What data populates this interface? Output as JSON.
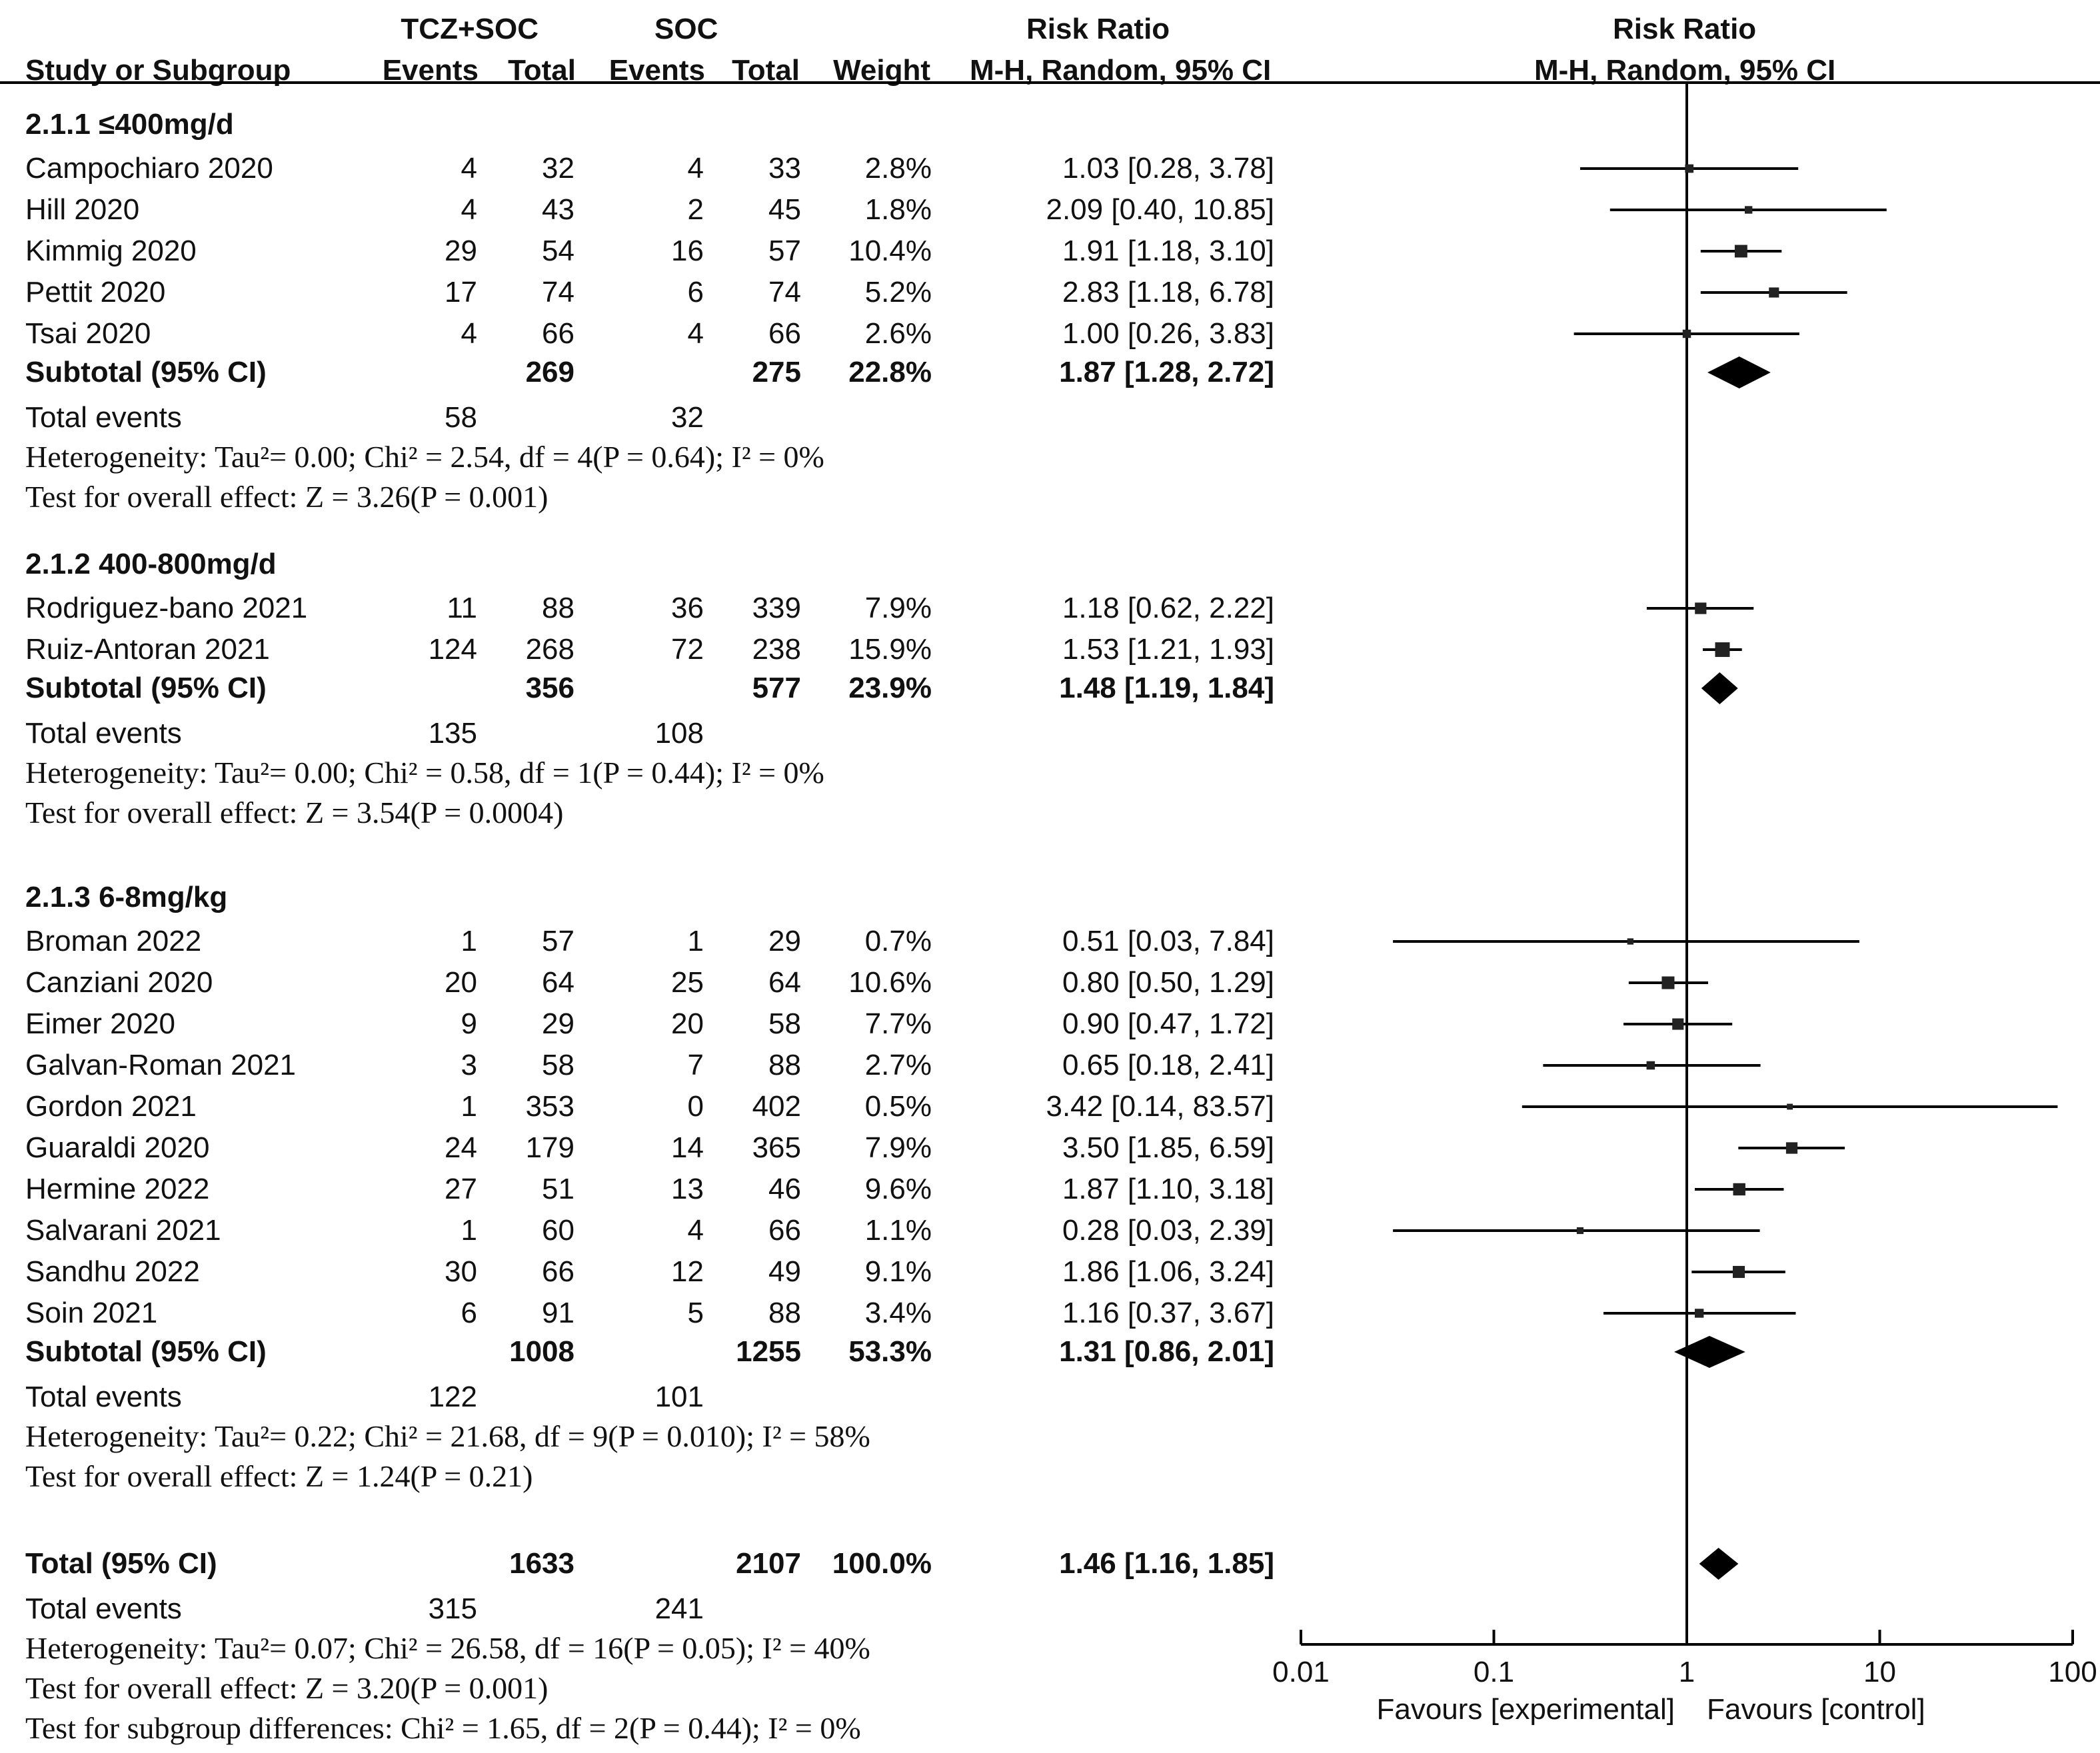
{
  "headers": {
    "arm1": "TCZ+SOC",
    "arm2": "SOC",
    "rr_left": "Risk Ratio",
    "rr_right": "Risk Ratio",
    "study": "Study or Subgroup",
    "events1": "Events",
    "total1": "Total",
    "events2": "Events",
    "total2": "Total",
    "weight": "Weight",
    "method_left": "M-H, Random, 95% CI",
    "method_right": "M-H, Random, 95% CI"
  },
  "subgroups": [
    {
      "title": "2.1.1 ≤400mg/d",
      "studies": [
        {
          "name": "Campochiaro 2020",
          "e1": "4",
          "t1": "32",
          "e2": "4",
          "t2": "33",
          "w": "2.8%",
          "ci": "1.03 [0.28, 3.78]"
        },
        {
          "name": "Hill 2020",
          "e1": "4",
          "t1": "43",
          "e2": "2",
          "t2": "45",
          "w": "1.8%",
          "ci": "2.09 [0.40, 10.85]"
        },
        {
          "name": "Kimmig 2020",
          "e1": "29",
          "t1": "54",
          "e2": "16",
          "t2": "57",
          "w": "10.4%",
          "ci": "1.91 [1.18, 3.10]"
        },
        {
          "name": "Pettit 2020",
          "e1": "17",
          "t1": "74",
          "e2": "6",
          "t2": "74",
          "w": "5.2%",
          "ci": "2.83 [1.18, 6.78]"
        },
        {
          "name": "Tsai 2020",
          "e1": "4",
          "t1": "66",
          "e2": "4",
          "t2": "66",
          "w": "2.6%",
          "ci": "1.00 [0.26, 3.83]"
        }
      ],
      "subtotal": {
        "label": "Subtotal (95% CI)",
        "t1": "269",
        "t2": "275",
        "w": "22.8%",
        "ci": "1.87 [1.28, 2.72]"
      },
      "total_events": {
        "label": "Total events",
        "e1": "58",
        "e2": "32"
      },
      "heterogeneity": "Heterogeneity: Tau²= 0.00; Chi² = 2.54, df = 4(P = 0.64); I² = 0%",
      "overall": "Test for overall effect: Z = 3.26(P = 0.001)"
    },
    {
      "title": "2.1.2 400-800mg/d",
      "studies": [
        {
          "name": "Rodriguez-bano 2021",
          "e1": "11",
          "t1": "88",
          "e2": "36",
          "t2": "339",
          "w": "7.9%",
          "ci": "1.18 [0.62, 2.22]"
        },
        {
          "name": "Ruiz-Antoran 2021",
          "e1": "124",
          "t1": "268",
          "e2": "72",
          "t2": "238",
          "w": "15.9%",
          "ci": "1.53 [1.21, 1.93]"
        }
      ],
      "subtotal": {
        "label": "Subtotal (95% CI)",
        "t1": "356",
        "t2": "577",
        "w": "23.9%",
        "ci": "1.48 [1.19, 1.84]"
      },
      "total_events": {
        "label": "Total events",
        "e1": "135",
        "e2": "108"
      },
      "heterogeneity": "Heterogeneity: Tau²= 0.00; Chi² = 0.58, df = 1(P = 0.44); I² = 0%",
      "overall": "Test for overall effect: Z = 3.54(P = 0.0004)"
    },
    {
      "title": "2.1.3 6-8mg/kg",
      "studies": [
        {
          "name": "Broman 2022",
          "e1": "1",
          "t1": "57",
          "e2": "1",
          "t2": "29",
          "w": "0.7%",
          "ci": "0.51 [0.03, 7.84]"
        },
        {
          "name": "Canziani 2020",
          "e1": "20",
          "t1": "64",
          "e2": "25",
          "t2": "64",
          "w": "10.6%",
          "ci": "0.80 [0.50, 1.29]"
        },
        {
          "name": "Eimer 2020",
          "e1": "9",
          "t1": "29",
          "e2": "20",
          "t2": "58",
          "w": "7.7%",
          "ci": "0.90 [0.47, 1.72]"
        },
        {
          "name": "Galvan-Roman 2021",
          "e1": "3",
          "t1": "58",
          "e2": "7",
          "t2": "88",
          "w": "2.7%",
          "ci": "0.65 [0.18, 2.41]"
        },
        {
          "name": "Gordon 2021",
          "e1": "1",
          "t1": "353",
          "e2": "0",
          "t2": "402",
          "w": "0.5%",
          "ci": "3.42 [0.14, 83.57]"
        },
        {
          "name": "Guaraldi  2020",
          "e1": "24",
          "t1": "179",
          "e2": "14",
          "t2": "365",
          "w": "7.9%",
          "ci": "3.50 [1.85, 6.59]"
        },
        {
          "name": "Hermine 2022",
          "e1": "27",
          "t1": "51",
          "e2": "13",
          "t2": "46",
          "w": "9.6%",
          "ci": "1.87 [1.10, 3.18]"
        },
        {
          "name": "Salvarani 2021",
          "e1": "1",
          "t1": "60",
          "e2": "4",
          "t2": "66",
          "w": "1.1%",
          "ci": "0.28 [0.03, 2.39]"
        },
        {
          "name": "Sandhu 2022",
          "e1": "30",
          "t1": "66",
          "e2": "12",
          "t2": "49",
          "w": "9.1%",
          "ci": "1.86 [1.06, 3.24]"
        },
        {
          "name": "Soin  2021",
          "e1": "6",
          "t1": "91",
          "e2": "5",
          "t2": "88",
          "w": "3.4%",
          "ci": "1.16 [0.37, 3.67]"
        }
      ],
      "subtotal": {
        "label": "Subtotal (95% CI)",
        "t1": "1008",
        "t2": "1255",
        "w": "53.3%",
        "ci": "1.31 [0.86, 2.01]"
      },
      "total_events": {
        "label": "Total events",
        "e1": "122",
        "e2": "101"
      },
      "heterogeneity": "Heterogeneity: Tau²= 0.22; Chi² = 21.68, df = 9(P = 0.010); I² = 58%",
      "overall": "Test for overall effect: Z = 1.24(P = 0.21)"
    }
  ],
  "total": {
    "label": "Total (95% CI)",
    "t1": "1633",
    "t2": "2107",
    "w": "100.0%",
    "ci": "1.46 [1.16, 1.85]"
  },
  "total_events": {
    "label": "Total events",
    "e1": "315",
    "e2": "241"
  },
  "total_heterogeneity": "Heterogeneity: Tau²= 0.07; Chi² = 26.58, df = 16(P = 0.05); I² = 40%",
  "total_overall": "Test for overall effect: Z = 3.20(P = 0.001)",
  "subgroup_diff": "Test for subgroup differences: Chi² = 1.65, df = 2(P = 0.44); I² = 0%",
  "chart_data": {
    "type": "forest",
    "scale": "log",
    "xlim": [
      0.01,
      100
    ],
    "null_line": 1,
    "ticks": [
      {
        "value": 0.01,
        "label": "0.01"
      },
      {
        "value": 0.1,
        "label": "0.1"
      },
      {
        "value": 1,
        "label": "1"
      },
      {
        "value": 10,
        "label": "10"
      },
      {
        "value": 100,
        "label": "100"
      }
    ],
    "favours_left": "Favours [experimental]",
    "favours_right": "Favours [control]",
    "studies": [
      {
        "name": "Campochiaro 2020",
        "rr": 1.03,
        "lo": 0.28,
        "hi": 3.78,
        "weight": 2.8
      },
      {
        "name": "Hill 2020",
        "rr": 2.09,
        "lo": 0.4,
        "hi": 10.85,
        "weight": 1.8
      },
      {
        "name": "Kimmig 2020",
        "rr": 1.91,
        "lo": 1.18,
        "hi": 3.1,
        "weight": 10.4
      },
      {
        "name": "Pettit 2020",
        "rr": 2.83,
        "lo": 1.18,
        "hi": 6.78,
        "weight": 5.2
      },
      {
        "name": "Tsai 2020",
        "rr": 1.0,
        "lo": 0.26,
        "hi": 3.83,
        "weight": 2.6
      },
      {
        "name": "Subtotal 2.1.1",
        "rr": 1.87,
        "lo": 1.28,
        "hi": 2.72,
        "diamond": true
      },
      {
        "name": "Rodriguez-bano 2021",
        "rr": 1.18,
        "lo": 0.62,
        "hi": 2.22,
        "weight": 7.9
      },
      {
        "name": "Ruiz-Antoran 2021",
        "rr": 1.53,
        "lo": 1.21,
        "hi": 1.93,
        "weight": 15.9
      },
      {
        "name": "Subtotal 2.1.2",
        "rr": 1.48,
        "lo": 1.19,
        "hi": 1.84,
        "diamond": true
      },
      {
        "name": "Broman 2022",
        "rr": 0.51,
        "lo": 0.03,
        "hi": 7.84,
        "weight": 0.7
      },
      {
        "name": "Canziani 2020",
        "rr": 0.8,
        "lo": 0.5,
        "hi": 1.29,
        "weight": 10.6
      },
      {
        "name": "Eimer 2020",
        "rr": 0.9,
        "lo": 0.47,
        "hi": 1.72,
        "weight": 7.7
      },
      {
        "name": "Galvan-Roman 2021",
        "rr": 0.65,
        "lo": 0.18,
        "hi": 2.41,
        "weight": 2.7
      },
      {
        "name": "Gordon 2021",
        "rr": 3.42,
        "lo": 0.14,
        "hi": 83.57,
        "weight": 0.5
      },
      {
        "name": "Guaraldi 2020",
        "rr": 3.5,
        "lo": 1.85,
        "hi": 6.59,
        "weight": 7.9
      },
      {
        "name": "Hermine 2022",
        "rr": 1.87,
        "lo": 1.1,
        "hi": 3.18,
        "weight": 9.6
      },
      {
        "name": "Salvarani 2021",
        "rr": 0.28,
        "lo": 0.03,
        "hi": 2.39,
        "weight": 1.1
      },
      {
        "name": "Sandhu 2022",
        "rr": 1.86,
        "lo": 1.06,
        "hi": 3.24,
        "weight": 9.1
      },
      {
        "name": "Soin 2021",
        "rr": 1.16,
        "lo": 0.37,
        "hi": 3.67,
        "weight": 3.4
      },
      {
        "name": "Subtotal 2.1.3",
        "rr": 1.31,
        "lo": 0.86,
        "hi": 2.01,
        "diamond": true
      },
      {
        "name": "Total",
        "rr": 1.46,
        "lo": 1.16,
        "hi": 1.85,
        "diamond": true
      }
    ]
  }
}
